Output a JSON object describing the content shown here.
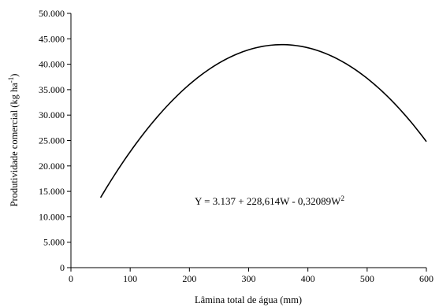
{
  "chart_data": {
    "type": "line",
    "xlabel": "Lâmina total de água (mm)",
    "ylabel_parts": {
      "base": "Produtividade comercial (kg ha",
      "sup": "-1",
      "end": ")"
    },
    "xlim": [
      0,
      600
    ],
    "ylim": [
      0,
      50000
    ],
    "xticks": [
      0,
      100,
      200,
      300,
      400,
      500,
      600
    ],
    "xtick_labels": [
      "0",
      "100",
      "200",
      "300",
      "400",
      "500",
      "600"
    ],
    "yticks": [
      0,
      5000,
      10000,
      15000,
      20000,
      25000,
      30000,
      35000,
      40000,
      45000,
      50000
    ],
    "ytick_labels": [
      "0",
      "5.000",
      "10.000",
      "15.000",
      "20.000",
      "25.000",
      "30.000",
      "35.000",
      "40.000",
      "45.000",
      "50.000"
    ],
    "grid": false,
    "model": {
      "intercept": 3137,
      "linear": 228.614,
      "quadratic": -0.32089
    },
    "x": [
      50,
      100,
      150,
      200,
      250,
      300,
      350,
      400,
      450,
      500,
      550,
      600
    ],
    "y": [
      13767,
      22789,
      30206,
      36021,
      40232,
      42838,
      43841,
      43240,
      41035,
      37227,
      31814,
      24797
    ],
    "equation": {
      "main": "Y = 3.137 + 228,614W - 0,32089W",
      "sup": "2"
    }
  }
}
